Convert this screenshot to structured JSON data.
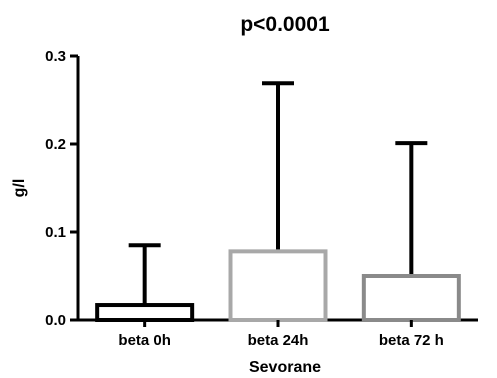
{
  "chart_data": {
    "type": "bar",
    "title": "p<0.0001",
    "xlabel": "Sevorane",
    "ylabel": "g/l",
    "ylim": [
      0,
      0.3
    ],
    "yticks": [
      "0.0",
      "0.1",
      "0.2",
      "0.3"
    ],
    "grid": false,
    "categories": [
      "beta 0h",
      "beta 24h",
      "beta 72 h"
    ],
    "values": [
      0.017,
      0.078,
      0.05
    ],
    "error_upper": [
      0.085,
      0.269,
      0.201
    ],
    "bar_colors": [
      "#000000",
      "#a8a8a8",
      "#8a8a8a"
    ],
    "error_color": "#000000"
  }
}
